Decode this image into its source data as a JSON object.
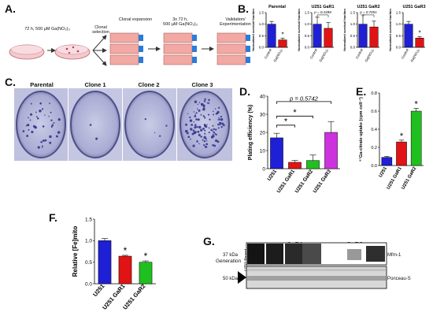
{
  "panels": {
    "a": {
      "letter": "A.",
      "step1_label": "72 h, 500 µM Ga(NO₃)₃",
      "clonal_selection": "Clonal selection",
      "clonal_expansion": "Clonal expansion",
      "treatment": "3x 72 h,\n500 µM Ga(NO₃)₃",
      "validation": "Validation/\nExperimentation"
    },
    "b": {
      "letter": "B.",
      "ylabel": "Normalized survival fraction",
      "categories": [
        "Control",
        "Ga(NO₃)₃"
      ]
    },
    "c": {
      "letter": "C.",
      "plates": [
        "Parental",
        "Clone 1",
        "Clone 2",
        "Clone 3"
      ]
    },
    "d": {
      "letter": "D.",
      "annotation": "p = 0.5742"
    },
    "e": {
      "letter": "E."
    },
    "f": {
      "letter": "F."
    },
    "g": {
      "letter": "G.",
      "groups": [
        "GaR1",
        "GaR2"
      ],
      "generation_label": "Generation",
      "parent_label": "U251 Parent",
      "gen_numbers": [
        "1",
        "2",
        "3",
        "1",
        "2",
        "3"
      ],
      "kda_upper": "37 kDa",
      "kda_lower": "50 kDa",
      "band_upper": "Mfrn-1",
      "band_lower": "Ponceau-S"
    }
  },
  "chart_data": [
    {
      "id": "B-parental",
      "type": "bar",
      "title": "Parental",
      "categories": [
        "Control",
        "Ga(NO₃)₃"
      ],
      "values": [
        1.0,
        0.32
      ],
      "errors": [
        0.12,
        0.08
      ],
      "colors": [
        "#1f1fd6",
        "#e01414"
      ],
      "ylim": [
        0,
        1.5
      ],
      "yticks": [
        "0.0",
        "0.5",
        "1.0",
        "1.5"
      ],
      "ylabel": "Normalized survival fraction",
      "annotation": "*"
    },
    {
      "id": "B-gar1",
      "type": "bar",
      "title": "U251 GaR1",
      "categories": [
        "Control",
        "Ga(NO₃)₃"
      ],
      "values": [
        1.0,
        0.82
      ],
      "errors": [
        0.3,
        0.25
      ],
      "colors": [
        "#1f1fd6",
        "#e01414"
      ],
      "ylim": [
        0,
        1.5
      ],
      "yticks": [
        "0.0",
        "0.5",
        "1.0",
        "1.5"
      ],
      "ylabel": "Normalized survival fraction",
      "annotation": "p = 0.2498"
    },
    {
      "id": "B-gar2",
      "type": "bar",
      "title": "U251 GaR2",
      "categories": [
        "Control",
        "Ga(NO₃)₃"
      ],
      "values": [
        1.0,
        0.88
      ],
      "errors": [
        0.4,
        0.25
      ],
      "colors": [
        "#1f1fd6",
        "#e01414"
      ],
      "ylim": [
        0,
        1.5
      ],
      "yticks": [
        "0.0",
        "0.5",
        "1.0",
        "1.5"
      ],
      "ylabel": "Normalized survival fraction",
      "annotation": "p = 0.7051"
    },
    {
      "id": "B-gar3",
      "type": "bar",
      "title": "U251 GaR3",
      "categories": [
        "Control",
        "Ga(NO₃)₃"
      ],
      "values": [
        1.0,
        0.4
      ],
      "errors": [
        0.12,
        0.06
      ],
      "colors": [
        "#1f1fd6",
        "#e01414"
      ],
      "ylim": [
        0,
        1.5
      ],
      "yticks": [
        "0.0",
        "0.5",
        "1.0",
        "1.5"
      ],
      "ylabel": "Normalized survival fraction",
      "annotation": "*"
    },
    {
      "id": "D",
      "type": "bar",
      "categories": [
        "U251",
        "U251 GaR1",
        "U251 GaR2",
        "U251 GaR3"
      ],
      "values": [
        17,
        3.5,
        4.5,
        20
      ],
      "errors": [
        2.5,
        1,
        3,
        6
      ],
      "colors": [
        "#1f1fd6",
        "#e01414",
        "#1fbf1f",
        "#cc33dd"
      ],
      "ylim": [
        0,
        40
      ],
      "yticks": [
        "0",
        "10",
        "20",
        "30",
        "40"
      ],
      "ylabel": "Plating efficiency (%)",
      "significance": [
        "*",
        "*",
        "p = 0.5742"
      ]
    },
    {
      "id": "E",
      "type": "bar",
      "categories": [
        "U251",
        "U251 GaR1",
        "U251 GaR2"
      ],
      "values": [
        0.09,
        0.26,
        0.6
      ],
      "errors": [
        0.01,
        0.02,
        0.03
      ],
      "colors": [
        "#1f1fd6",
        "#e01414",
        "#1fbf1f"
      ],
      "ylim": [
        0,
        0.8
      ],
      "yticks": [
        "0.0",
        "0.2",
        "0.4",
        "0.6",
        "0.8"
      ],
      "ylabel": "⁶⁷Ga-citrate uptake (cpm cell⁻¹)",
      "annotations": [
        "",
        "*",
        "*"
      ]
    },
    {
      "id": "F",
      "type": "bar",
      "categories": [
        "U251",
        "U251 GaR1",
        "U251 GaR2"
      ],
      "values": [
        1.0,
        0.64,
        0.5
      ],
      "errors": [
        0.05,
        0.02,
        0.03
      ],
      "colors": [
        "#1f1fd6",
        "#e01414",
        "#1fbf1f"
      ],
      "ylim": [
        0,
        1.5
      ],
      "yticks": [
        "0.0",
        "0.5",
        "1.0",
        "1.5"
      ],
      "ylabel": "Relative [Fe]mito",
      "annotations": [
        "",
        "*",
        "*"
      ]
    }
  ]
}
